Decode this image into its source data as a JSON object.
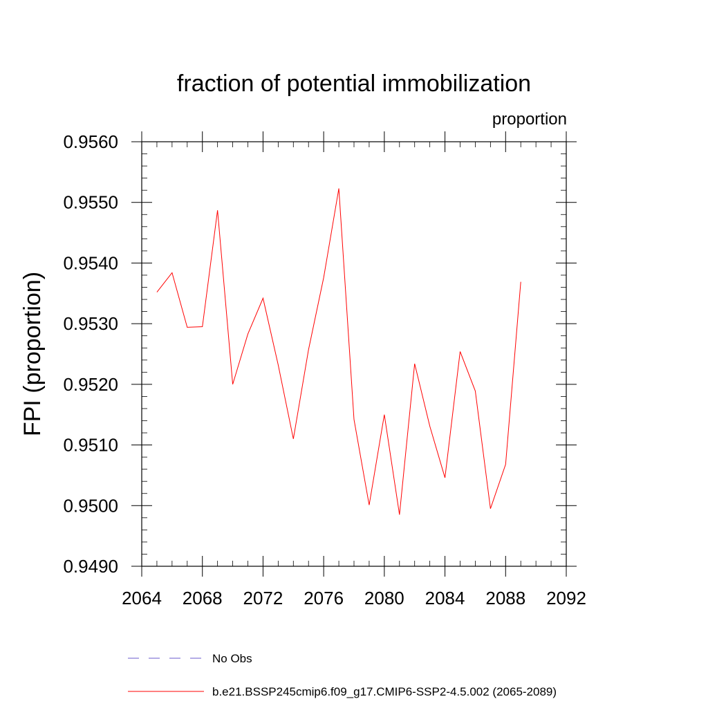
{
  "chart_data": {
    "type": "line",
    "title": "fraction of potential immobilization",
    "units_label": "proportion",
    "ylabel": "FPI  (proportion)",
    "xlabel": "",
    "xlim": [
      2064,
      2092
    ],
    "ylim": [
      0.949,
      0.956
    ],
    "x_ticks": [
      2064,
      2068,
      2072,
      2076,
      2080,
      2084,
      2088,
      2092
    ],
    "y_ticks": [
      0.949,
      0.95,
      0.951,
      0.952,
      0.953,
      0.954,
      0.955,
      0.956
    ],
    "x_tick_labels": [
      "2064",
      "2068",
      "2072",
      "2076",
      "2080",
      "2084",
      "2088",
      "2092"
    ],
    "y_tick_labels": [
      "0.9490",
      "0.9500",
      "0.9510",
      "0.9520",
      "0.9530",
      "0.9540",
      "0.9550",
      "0.9560"
    ],
    "grid": false,
    "series": [
      {
        "name": "b.e21.BSSP245cmip6.f09_g17.CMIP6-SSP2-4.5.002 (2065-2089)",
        "color": "#ff0000",
        "style": "solid",
        "x": [
          2065,
          2066,
          2067,
          2068,
          2069,
          2070,
          2071,
          2072,
          2073,
          2074,
          2075,
          2076,
          2077,
          2078,
          2079,
          2080,
          2081,
          2082,
          2083,
          2084,
          2085,
          2086,
          2087,
          2088,
          2089
        ],
        "y": [
          0.95352,
          0.95384,
          0.95294,
          0.95295,
          0.95487,
          0.952,
          0.95283,
          0.95342,
          0.95232,
          0.9511,
          0.95257,
          0.95376,
          0.95523,
          0.95142,
          0.95001,
          0.9515,
          0.94985,
          0.95234,
          0.95131,
          0.95046,
          0.95254,
          0.95189,
          0.94995,
          0.95068,
          0.95369
        ]
      }
    ],
    "legend": [
      {
        "label": "No Obs",
        "color": "#6a5acd",
        "style": "dashed"
      },
      {
        "label": "b.e21.BSSP245cmip6.f09_g17.CMIP6-SSP2-4.5.002 (2065-2089)",
        "color": "#ff0000",
        "style": "solid"
      }
    ],
    "legend_position": "bottom-left"
  }
}
